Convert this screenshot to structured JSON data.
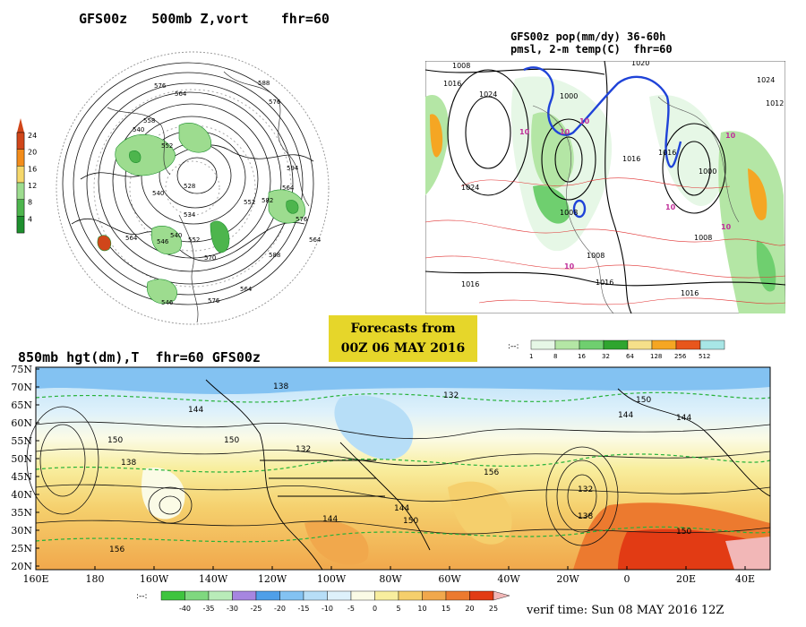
{
  "panels": {
    "top_left": {
      "title": "GFS00z   500mb Z,vort    fhr=60",
      "colorbar_labels": [
        "24",
        "20",
        "16",
        "12",
        "8",
        "4"
      ],
      "colorbar_colors": [
        "#d0461a",
        "#f28c1b",
        "#f5d76b",
        "#9ddc8f",
        "#4db54d",
        "#1e8f2e"
      ],
      "contour_labels": [
        "576",
        "564",
        "588",
        "576",
        "558",
        "540",
        "552",
        "540",
        "528",
        "534",
        "552",
        "564",
        "576",
        "564",
        "546",
        "540",
        "552",
        "570",
        "564",
        "546",
        "582",
        "594",
        "576",
        "564",
        "588"
      ]
    },
    "top_right": {
      "title_line1": "GFS00z pop(mm/dy) 36-60h",
      "title_line2": "pmsl, 2-m temp(C)  fhr=60",
      "colorbar_labels": [
        "1",
        "8",
        "16",
        "32",
        "64",
        "128",
        "256",
        "512"
      ],
      "colorbar_colors": [
        "#e6f7e6",
        "#b4e6a5",
        "#6fcf6f",
        "#2fa52f",
        "#f5e08a",
        "#f5a623",
        "#e8561c",
        "#a8e6e6"
      ],
      "isobar_labels": [
        "1008",
        "1016",
        "1024",
        "1020",
        "1000",
        "1024",
        "1016",
        "1008",
        "1000",
        "1016",
        "1024",
        "1012",
        "1008",
        "1008",
        "1016",
        "1016",
        "1016"
      ],
      "temp_labels": [
        "10",
        "10",
        "10",
        "10",
        "10",
        "10",
        "10"
      ]
    },
    "bottom": {
      "title": "850mb hgt(dm),T  fhr=60 GFS00z",
      "lat_labels": [
        "75N",
        "70N",
        "65N",
        "60N",
        "55N",
        "50N",
        "45N",
        "40N",
        "35N",
        "30N",
        "25N",
        "20N"
      ],
      "lon_labels": [
        "160E",
        "180",
        "160W",
        "140W",
        "120W",
        "100W",
        "80W",
        "60W",
        "40W",
        "20W",
        "0",
        "20E",
        "40E"
      ],
      "height_labels": [
        "138",
        "132",
        "144",
        "150",
        "138",
        "150",
        "144",
        "132",
        "144",
        "144",
        "150",
        "156",
        "132",
        "138",
        "150",
        "156",
        "144",
        "150"
      ],
      "colorbar_labels": [
        "-40",
        "-35",
        "-30",
        "-25",
        "-20",
        "-15",
        "-10",
        "-5",
        "0",
        "5",
        "10",
        "15",
        "20",
        "25"
      ],
      "colorbar_colors": [
        "#3ec43e",
        "#7fd87f",
        "#b9ecb9",
        "#a686e0",
        "#4f9fe8",
        "#83c2f2",
        "#b7def7",
        "#def1fb",
        "#fbfbe6",
        "#f8ee9e",
        "#f5cf6c",
        "#f1a84c",
        "#ec7a2f",
        "#e23b14"
      ]
    }
  },
  "forecast_box": {
    "line1": "Forecasts from",
    "line2": "00Z 06 MAY 2016"
  },
  "verif_time": "verif time: Sun 08 MAY 2016 12Z"
}
